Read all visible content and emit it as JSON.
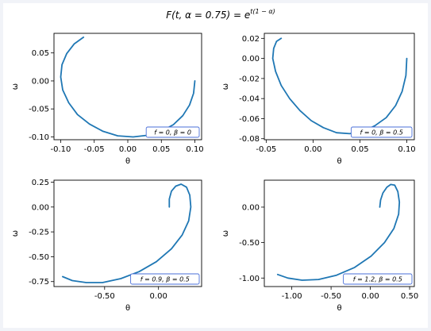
{
  "figure": {
    "title": "F(t, α = 0.75) = e",
    "title_exp": "t(1 − α)"
  },
  "chart_data": [
    {
      "type": "line",
      "xlabel": "θ",
      "ylabel": "ω",
      "xlim": [
        -0.11,
        0.11
      ],
      "ylim": [
        -0.105,
        0.085
      ],
      "xticks": [
        -0.1,
        -0.05,
        0.0,
        0.05,
        0.1
      ],
      "xtick_labels": [
        "-0.10",
        "-0.05",
        "0.00",
        "0.05",
        "0.10"
      ],
      "yticks": [
        -0.1,
        -0.05,
        0.0,
        0.05
      ],
      "ytick_labels": [
        "-0.10",
        "-0.05",
        "0.00",
        "0.05"
      ],
      "legend": "f = 0, β = 0",
      "legend_position": "lower-right",
      "line_color": "#1f77b4",
      "series": [
        {
          "x": [
            0.1,
            0.098,
            0.092,
            0.082,
            0.068,
            0.05,
            0.03,
            0.008,
            -0.015,
            -0.037,
            -0.057,
            -0.075,
            -0.088,
            -0.097,
            -0.1,
            -0.098,
            -0.091,
            -0.08,
            -0.066
          ],
          "y": [
            0.0,
            -0.022,
            -0.043,
            -0.062,
            -0.078,
            -0.09,
            -0.097,
            -0.1,
            -0.098,
            -0.09,
            -0.077,
            -0.06,
            -0.039,
            -0.016,
            0.007,
            0.029,
            0.049,
            0.066,
            0.078
          ]
        }
      ]
    },
    {
      "type": "line",
      "xlabel": "θ",
      "ylabel": "ω",
      "xlim": [
        -0.052,
        0.108
      ],
      "ylim": [
        -0.081,
        0.025
      ],
      "xticks": [
        -0.05,
        0.0,
        0.05,
        0.1
      ],
      "xtick_labels": [
        "-0.05",
        "0.00",
        "0.05",
        "0.10"
      ],
      "yticks": [
        -0.08,
        -0.06,
        -0.04,
        -0.02,
        0.0,
        0.02
      ],
      "ytick_labels": [
        "-0.08",
        "-0.06",
        "-0.04",
        "-0.02",
        "0.00",
        "0.02"
      ],
      "legend": "f = 0, β = 0.5",
      "legend_position": "lower-right",
      "line_color": "#1f77b4",
      "series": [
        {
          "x": [
            0.1,
            0.099,
            0.095,
            0.088,
            0.078,
            0.066,
            0.053,
            0.039,
            0.025,
            0.011,
            -0.002,
            -0.014,
            -0.025,
            -0.034,
            -0.04,
            -0.043,
            -0.042,
            -0.039,
            -0.034
          ],
          "y": [
            0.0,
            -0.017,
            -0.033,
            -0.047,
            -0.059,
            -0.067,
            -0.073,
            -0.075,
            -0.074,
            -0.069,
            -0.062,
            -0.052,
            -0.04,
            -0.027,
            -0.013,
            0.0,
            0.01,
            0.017,
            0.02
          ]
        }
      ]
    },
    {
      "type": "line",
      "xlabel": "θ",
      "ylabel": "ω",
      "xlim": [
        -0.97,
        0.4
      ],
      "ylim": [
        -0.8,
        0.27
      ],
      "xticks": [
        -0.5,
        0.0
      ],
      "xtick_labels": [
        "-0.50",
        "0.00"
      ],
      "yticks": [
        -0.75,
        -0.5,
        -0.25,
        0.0,
        0.25
      ],
      "ytick_labels": [
        "-0.75",
        "-0.50",
        "-0.25",
        "0.00",
        "0.25"
      ],
      "legend": "f = 0.9, β = 0.5",
      "legend_position": "lower-right",
      "line_color": "#1f77b4",
      "series": [
        {
          "x": [
            0.1,
            0.1,
            0.12,
            0.16,
            0.21,
            0.26,
            0.29,
            0.3,
            0.28,
            0.22,
            0.12,
            -0.02,
            -0.18,
            -0.35,
            -0.52,
            -0.67,
            -0.8,
            -0.89
          ],
          "y": [
            0.0,
            0.08,
            0.16,
            0.21,
            0.23,
            0.2,
            0.12,
            0.0,
            -0.14,
            -0.28,
            -0.42,
            -0.55,
            -0.65,
            -0.72,
            -0.76,
            -0.76,
            -0.74,
            -0.7
          ]
        }
      ]
    },
    {
      "type": "line",
      "xlabel": "θ",
      "ylabel": "ω",
      "xlim": [
        -1.35,
        0.56
      ],
      "ylim": [
        -1.12,
        0.38
      ],
      "xticks": [
        -1.0,
        -0.5,
        0.0,
        0.5
      ],
      "xtick_labels": [
        "-1.00",
        "-0.50",
        "0.00",
        "0.50"
      ],
      "yticks": [
        -1.0,
        -0.5,
        0.0
      ],
      "ytick_labels": [
        "-1.00",
        "-0.50",
        "0.00"
      ],
      "legend": "f = 1.2, β = 0.5",
      "legend_position": "lower-right",
      "line_color": "#1f77b4",
      "series": [
        {
          "x": [
            0.12,
            0.13,
            0.16,
            0.21,
            0.26,
            0.31,
            0.35,
            0.37,
            0.36,
            0.3,
            0.18,
            0.01,
            -0.2,
            -0.43,
            -0.66,
            -0.87,
            -1.05,
            -1.18
          ],
          "y": [
            0.0,
            0.1,
            0.2,
            0.28,
            0.32,
            0.31,
            0.22,
            0.07,
            -0.1,
            -0.3,
            -0.5,
            -0.69,
            -0.85,
            -0.96,
            -1.02,
            -1.03,
            -1.0,
            -0.95
          ]
        }
      ]
    }
  ]
}
